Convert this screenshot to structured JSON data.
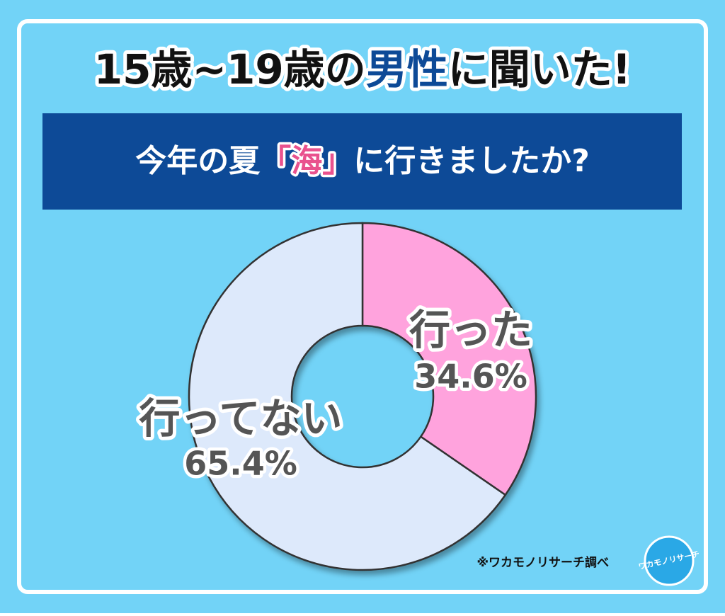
{
  "chart_data": {
    "type": "pie",
    "donut": true,
    "title_parts": [
      "15歳~19歳の",
      "男性",
      "に聞いた!"
    ],
    "subtitle_parts": [
      "今年の夏",
      "「海」",
      "に行きましたか?"
    ],
    "categories": [
      "行った",
      "行ってない"
    ],
    "values": [
      34.6,
      65.4
    ],
    "value_labels": [
      "34.6%",
      "65.4%"
    ],
    "colors": [
      "#ffa3dd",
      "#dde9fb"
    ],
    "source": "※ワカモノリサーチ調べ",
    "logo": "ワカモノリサーチ"
  }
}
